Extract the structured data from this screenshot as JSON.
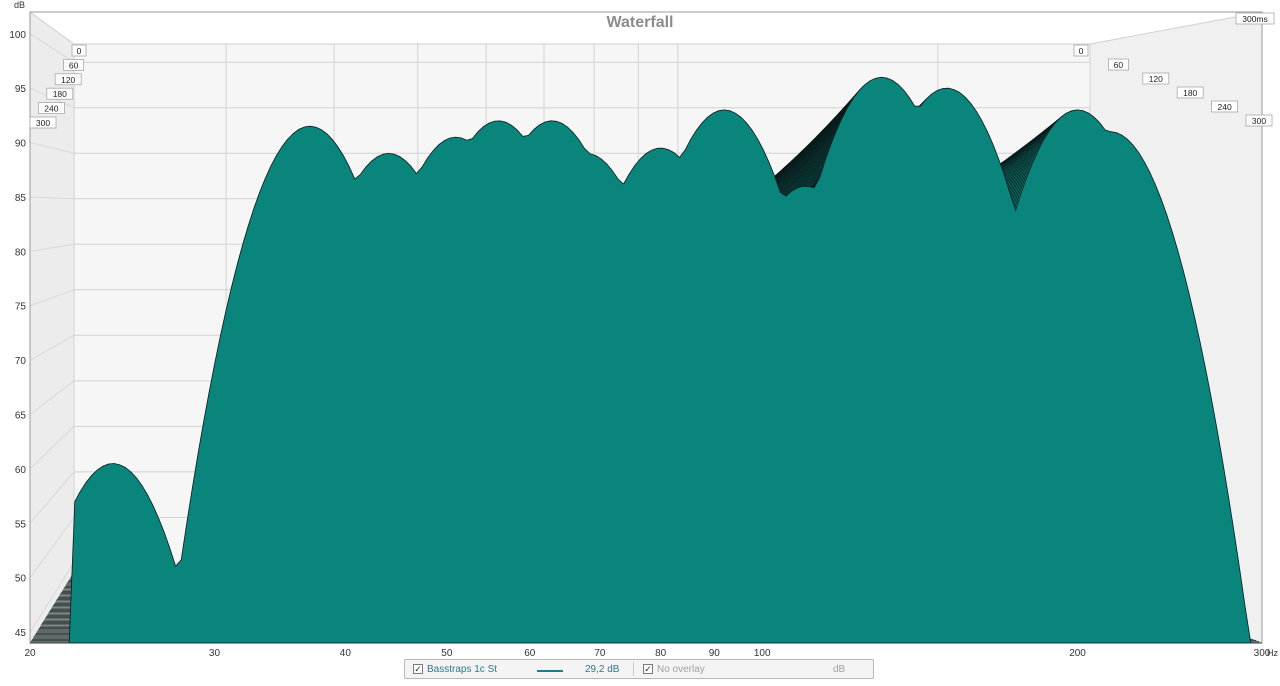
{
  "window": {
    "title": "Waterfall"
  },
  "chart_data": {
    "type": "area",
    "title": "Waterfall",
    "ylabel": "dB",
    "xlabel": "Hz",
    "y_ticks": [
      45,
      50,
      55,
      60,
      65,
      70,
      75,
      80,
      85,
      90,
      95,
      100
    ],
    "y_range": [
      44,
      102
    ],
    "x_ticks": [
      {
        "value": 20,
        "label": "20"
      },
      {
        "value": 30,
        "label": "30"
      },
      {
        "value": 40,
        "label": "40"
      },
      {
        "value": 50,
        "label": "50"
      },
      {
        "value": 60,
        "label": "60"
      },
      {
        "value": 70,
        "label": "70"
      },
      {
        "value": 80,
        "label": "80"
      },
      {
        "value": 90,
        "label": "90"
      },
      {
        "value": 100,
        "label": "100"
      },
      {
        "value": 200,
        "label": "200"
      },
      {
        "value": 300,
        "label": "300"
      }
    ],
    "x_range": [
      20,
      300
    ],
    "x_scale": "log",
    "time_axis_label": "300ms",
    "time_ticks_left": [
      "0",
      "60",
      "120",
      "180",
      "240",
      "300"
    ],
    "time_ticks_right": [
      "0",
      "60",
      "120",
      "180",
      "240",
      "300"
    ],
    "time_range_ms": [
      0,
      300
    ],
    "slices": 60,
    "fill_color": "#0a857c",
    "line_color": "#0a1a1a",
    "peaks_first_slice": [
      {
        "freq": 24,
        "db": 60.5
      },
      {
        "freq": 37,
        "db": 91.5
      },
      {
        "freq": 44,
        "db": 89
      },
      {
        "freq": 51,
        "db": 90.5
      },
      {
        "freq": 56,
        "db": 92
      },
      {
        "freq": 63,
        "db": 92
      },
      {
        "freq": 68,
        "db": 89
      },
      {
        "freq": 80,
        "db": 89.5
      },
      {
        "freq": 92,
        "db": 93
      },
      {
        "freq": 110,
        "db": 86
      },
      {
        "freq": 130,
        "db": 96
      },
      {
        "freq": 150,
        "db": 95
      },
      {
        "freq": 200,
        "db": 93
      },
      {
        "freq": 215,
        "db": 91
      }
    ],
    "series": [
      {
        "name": "Basstraps 1c St",
        "value_label": "29,2 dB",
        "visible": true
      }
    ]
  },
  "legend": {
    "series_name": "Basstraps 1c St",
    "series_value": "29,2 dB",
    "overlay_label": "No overlay",
    "unit_label": "dB",
    "series_checked": "✓",
    "overlay_checked": "✓"
  }
}
